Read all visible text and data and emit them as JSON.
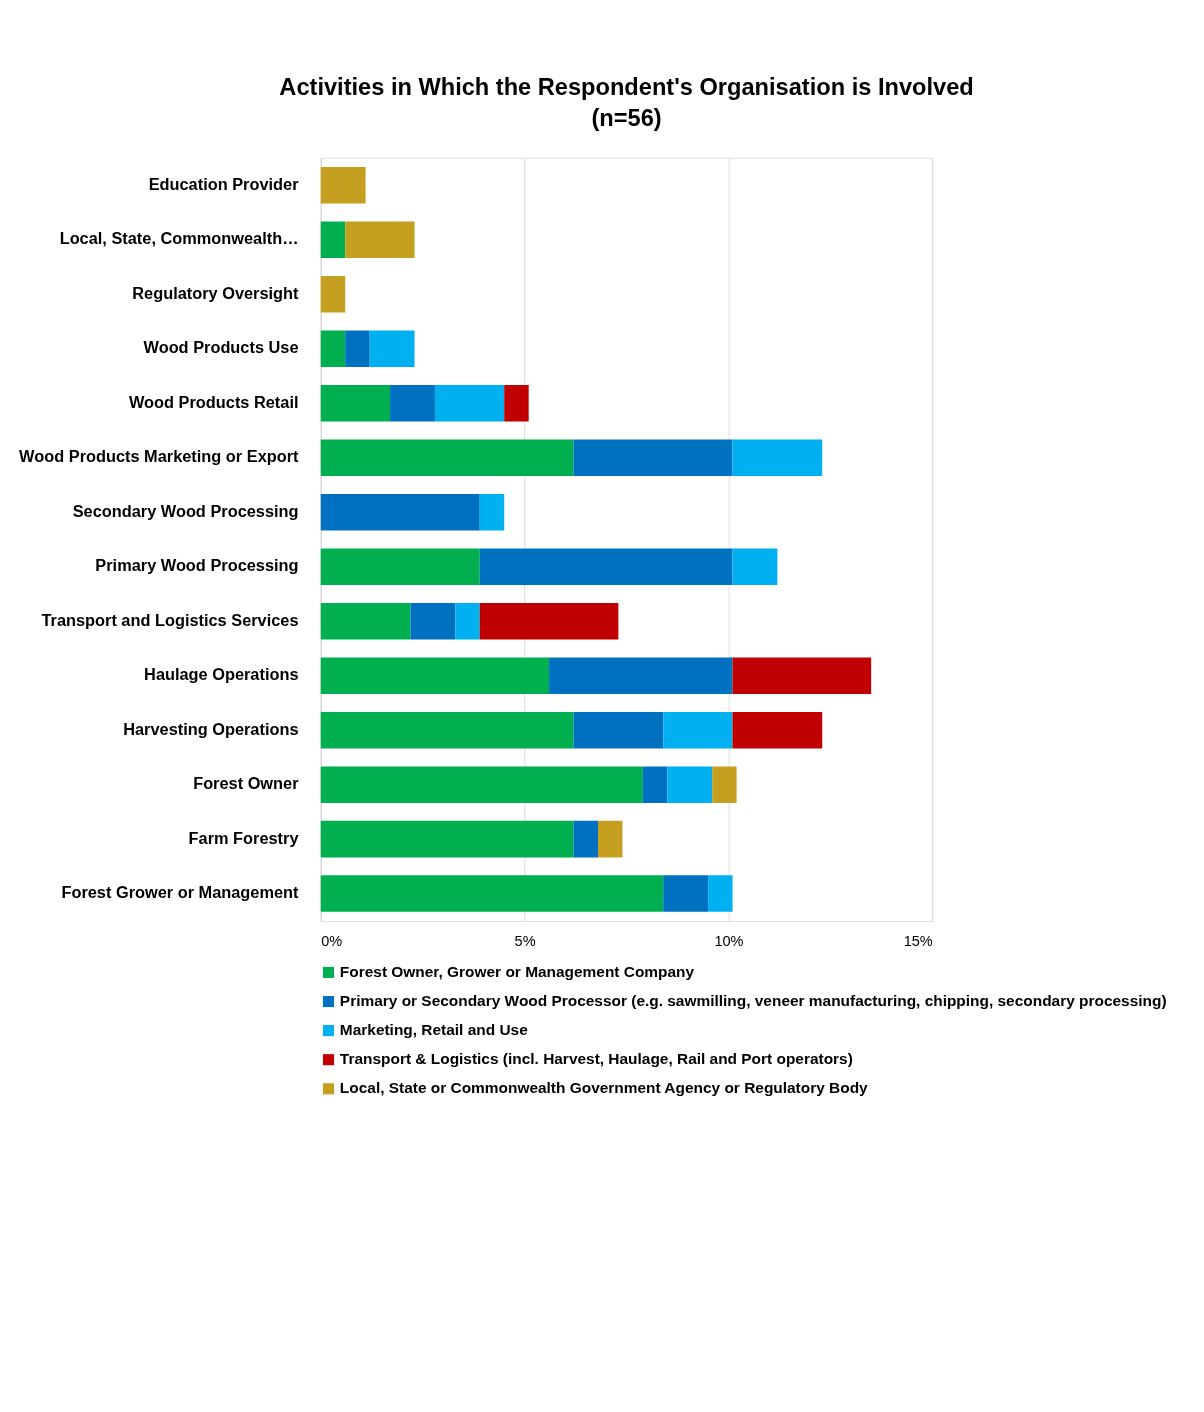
{
  "chart_data": {
    "type": "bar",
    "orientation": "horizontal",
    "stacked": true,
    "title": "Activities in Which the Respondent's Organisation is Involved\n(n=56)",
    "categories": [
      "Education Provider",
      "Local, State, Commonwealth…",
      "Regulatory Oversight",
      "Wood Products Use",
      "Wood Products Retail",
      "Wood Products Marketing or Export",
      "Secondary Wood Processing",
      "Primary Wood Processing",
      "Transport and Logistics Services",
      "Haulage Operations",
      "Harvesting Operations",
      "Forest Owner",
      "Farm Forestry",
      "Forest Grower or Management"
    ],
    "series": [
      {
        "name": "Forest Owner, Grower or Management Company",
        "color": "#00b050",
        "values": [
          null,
          0.6,
          null,
          0.6,
          1.7,
          6.2,
          null,
          3.9,
          2.2,
          5.6,
          6.2,
          7.9,
          6.2,
          8.4
        ]
      },
      {
        "name": "Primary or Secondary Wood Processor (e.g. sawmilling, veneer manufacturing, chipping, secondary processing)",
        "color": "#0070c0",
        "values": [
          null,
          null,
          null,
          0.6,
          1.1,
          3.9,
          3.9,
          6.2,
          1.1,
          4.5,
          2.2,
          0.6,
          0.6,
          1.1
        ]
      },
      {
        "name": "Marketing, Retail and Use",
        "color": "#00b0f0",
        "values": [
          null,
          null,
          null,
          1.1,
          1.7,
          2.2,
          0.6,
          1.1,
          0.6,
          null,
          1.7,
          1.1,
          null,
          0.6
        ]
      },
      {
        "name": "Transport & Logistics (incl. Harvest, Haulage, Rail and Port operators)",
        "color": "#c00000",
        "values": [
          null,
          null,
          null,
          null,
          0.6,
          null,
          null,
          null,
          3.4,
          3.4,
          2.2,
          null,
          null,
          null
        ]
      },
      {
        "name": "Local, State or Commonwealth Government Agency or Regulatory Body",
        "color": "#c5a020",
        "values": [
          1.1,
          1.7,
          0.6,
          null,
          null,
          null,
          null,
          null,
          null,
          null,
          null,
          0.6,
          0.6,
          null
        ]
      }
    ],
    "xlim": [
      0,
      15
    ],
    "xticks": [
      {
        "value": 0,
        "label": "0%"
      },
      {
        "value": 5,
        "label": "5%"
      },
      {
        "value": 10,
        "label": "10%"
      },
      {
        "value": 15,
        "label": "15%"
      }
    ],
    "grid": "x",
    "legend": "bottom"
  }
}
